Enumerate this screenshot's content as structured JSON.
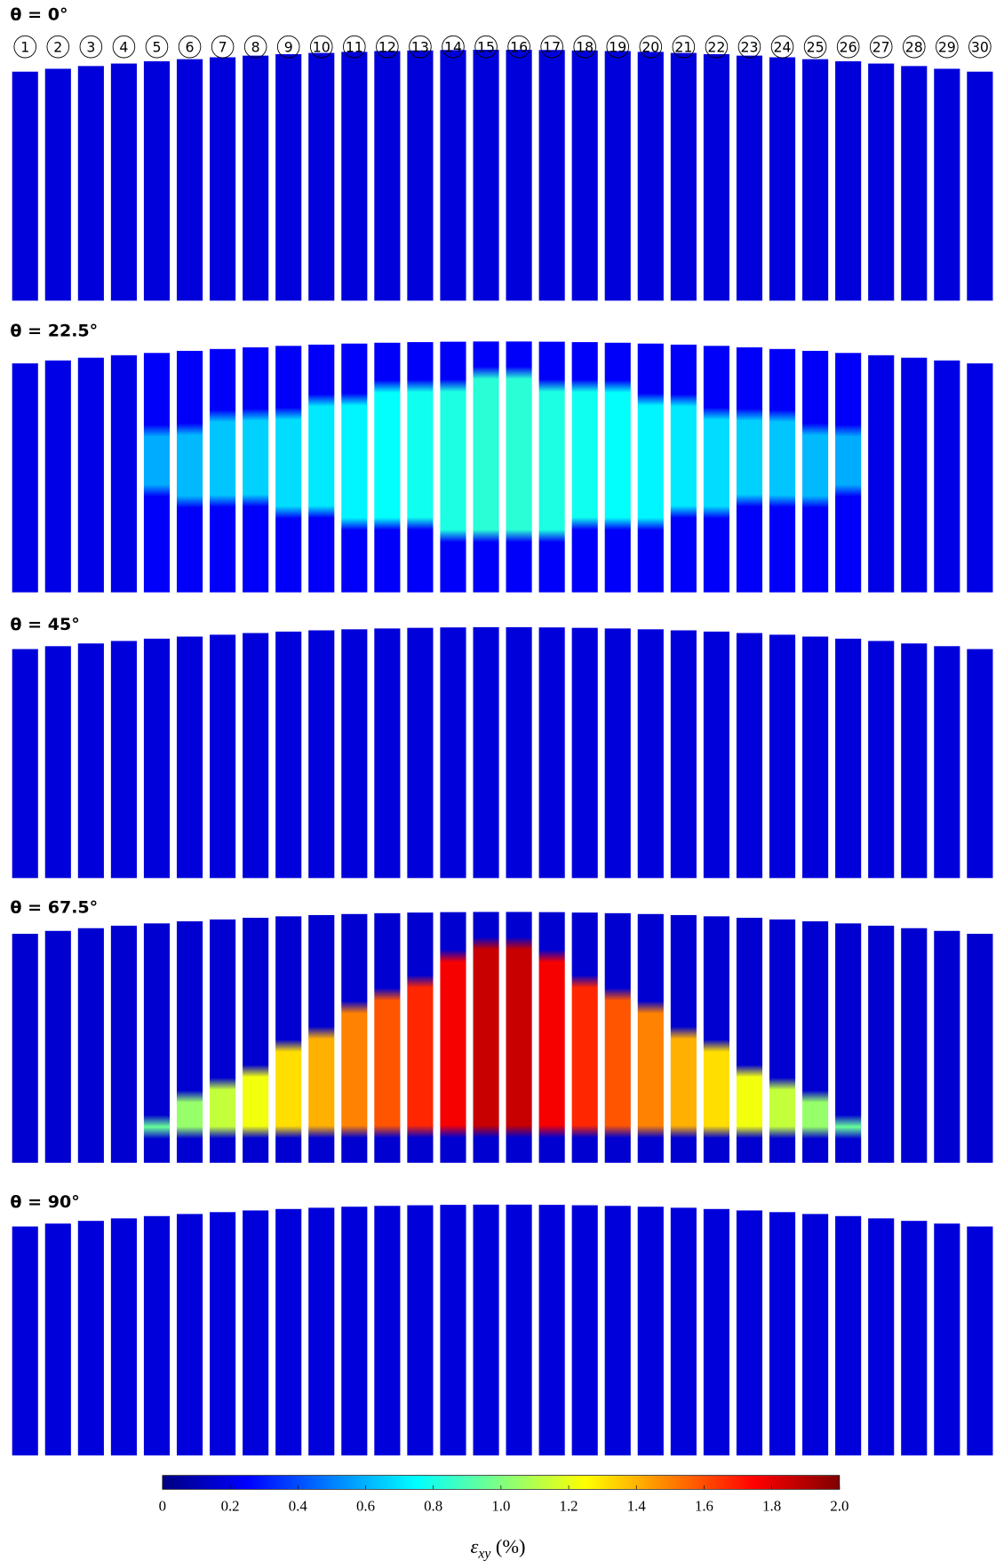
{
  "panels": [
    {
      "title": "θ = 0°"
    },
    {
      "title": "θ = 22.5°"
    },
    {
      "title": "θ = 45°"
    },
    {
      "title": "θ = 67.5°"
    },
    {
      "title": "θ = 90°"
    }
  ],
  "strips": [
    "1",
    "2",
    "3",
    "4",
    "5",
    "6",
    "7",
    "8",
    "9",
    "10",
    "11",
    "12",
    "13",
    "14",
    "15",
    "16",
    "17",
    "18",
    "19",
    "20",
    "21",
    "22",
    "23",
    "24",
    "25",
    "26",
    "27",
    "28",
    "29",
    "30"
  ],
  "colorbar": {
    "lim": [
      0,
      2
    ],
    "ticks": [
      0,
      0.2,
      0.4,
      0.6,
      0.8,
      {
        "value": 1,
        "label": "1.0"
      },
      1.2,
      1.4,
      1.6,
      1.8,
      {
        "value": 2,
        "label": "2.0"
      }
    ],
    "label": {
      "symbol": "ε",
      "subscript": "xy",
      "unit": "(%)"
    }
  }
}
